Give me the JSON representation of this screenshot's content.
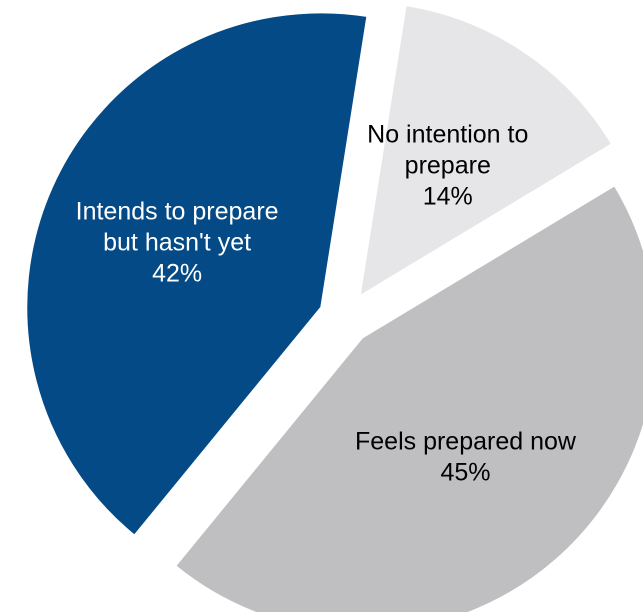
{
  "chart_data": {
    "type": "pie",
    "slices": [
      {
        "label_lines": [
          "No intention to",
          "prepare"
        ],
        "value_label": "14%",
        "value": 14,
        "color": "#e6e6e8",
        "text_color": "#000000"
      },
      {
        "label_lines": [
          "Feels prepared now"
        ],
        "value_label": "45%",
        "value": 45,
        "color": "#bfbfc1",
        "text_color": "#000000"
      },
      {
        "label_lines": [
          "Intends to prepare",
          "but hasn't yet"
        ],
        "value_label": "42%",
        "value": 42,
        "color": "#034a86",
        "text_color": "#ffffff"
      }
    ],
    "title": "",
    "legend": "none"
  }
}
